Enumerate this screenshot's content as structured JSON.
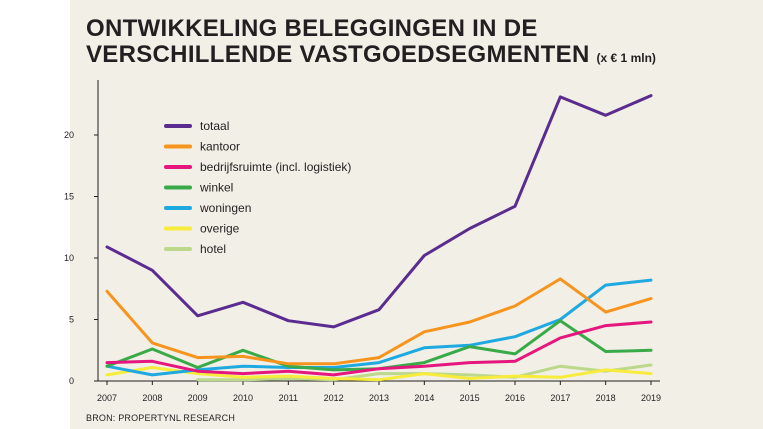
{
  "title": {
    "line1": "ONTWIKKELING BELEGGINGEN IN DE",
    "line2": "VERSCHILLENDE VASTGOEDSEGMENTEN",
    "unit": "(x € 1 mln)"
  },
  "source": "BRON: PROPERTYNL RESEARCH",
  "chart_data": {
    "type": "line",
    "title": "ONTWIKKELING BELEGGINGEN IN DE VERSCHILLENDE VASTGOEDSEGMENTEN (x € 1 mln)",
    "xlabel": "",
    "ylabel": "",
    "categories": [
      "2007",
      "2008",
      "2009",
      "2010",
      "2011",
      "2012",
      "2013",
      "2014",
      "2015",
      "2016",
      "2017",
      "2018",
      "2019"
    ],
    "ylim": [
      0,
      25
    ],
    "yticks": [
      0,
      5,
      10,
      15,
      20
    ],
    "grid": false,
    "legend_position": "top-left",
    "series": [
      {
        "name": "totaal",
        "color": "#5b2c8f",
        "values": [
          10.9,
          9.0,
          5.3,
          6.4,
          4.9,
          4.4,
          5.8,
          10.2,
          12.4,
          14.2,
          23.1,
          21.6,
          23.2
        ]
      },
      {
        "name": "kantoor",
        "color": "#f7941d",
        "values": [
          7.3,
          3.1,
          1.9,
          2.0,
          1.4,
          1.4,
          1.9,
          4.0,
          4.8,
          6.1,
          8.3,
          5.6,
          6.7
        ]
      },
      {
        "name": "bedrijfsruimte (incl. logistiek)",
        "color": "#e5177e",
        "values": [
          1.5,
          1.6,
          0.8,
          0.6,
          0.8,
          0.5,
          1.0,
          1.2,
          1.5,
          1.6,
          3.5,
          4.5,
          4.8
        ]
      },
      {
        "name": "winkel",
        "color": "#3aaa49",
        "values": [
          1.2,
          2.6,
          1.1,
          2.5,
          1.2,
          0.9,
          1.0,
          1.5,
          2.8,
          2.2,
          4.9,
          2.4,
          2.5
        ]
      },
      {
        "name": "woningen",
        "color": "#1fa9e1",
        "values": [
          1.2,
          0.5,
          0.9,
          1.2,
          1.1,
          1.1,
          1.5,
          2.7,
          2.9,
          3.6,
          5.0,
          7.8,
          8.2
        ]
      },
      {
        "name": "overige",
        "color": "#f7ec3b",
        "values": [
          0.5,
          1.1,
          0.6,
          0.3,
          0.4,
          0.2,
          0.1,
          0.6,
          0.2,
          0.4,
          0.3,
          0.9,
          0.6
        ]
      },
      {
        "name": "hotel",
        "color": "#bcd88a",
        "values": [
          null,
          null,
          0.1,
          0.1,
          0.2,
          0.1,
          0.6,
          0.6,
          0.5,
          0.3,
          1.2,
          0.8,
          1.3
        ]
      }
    ]
  }
}
